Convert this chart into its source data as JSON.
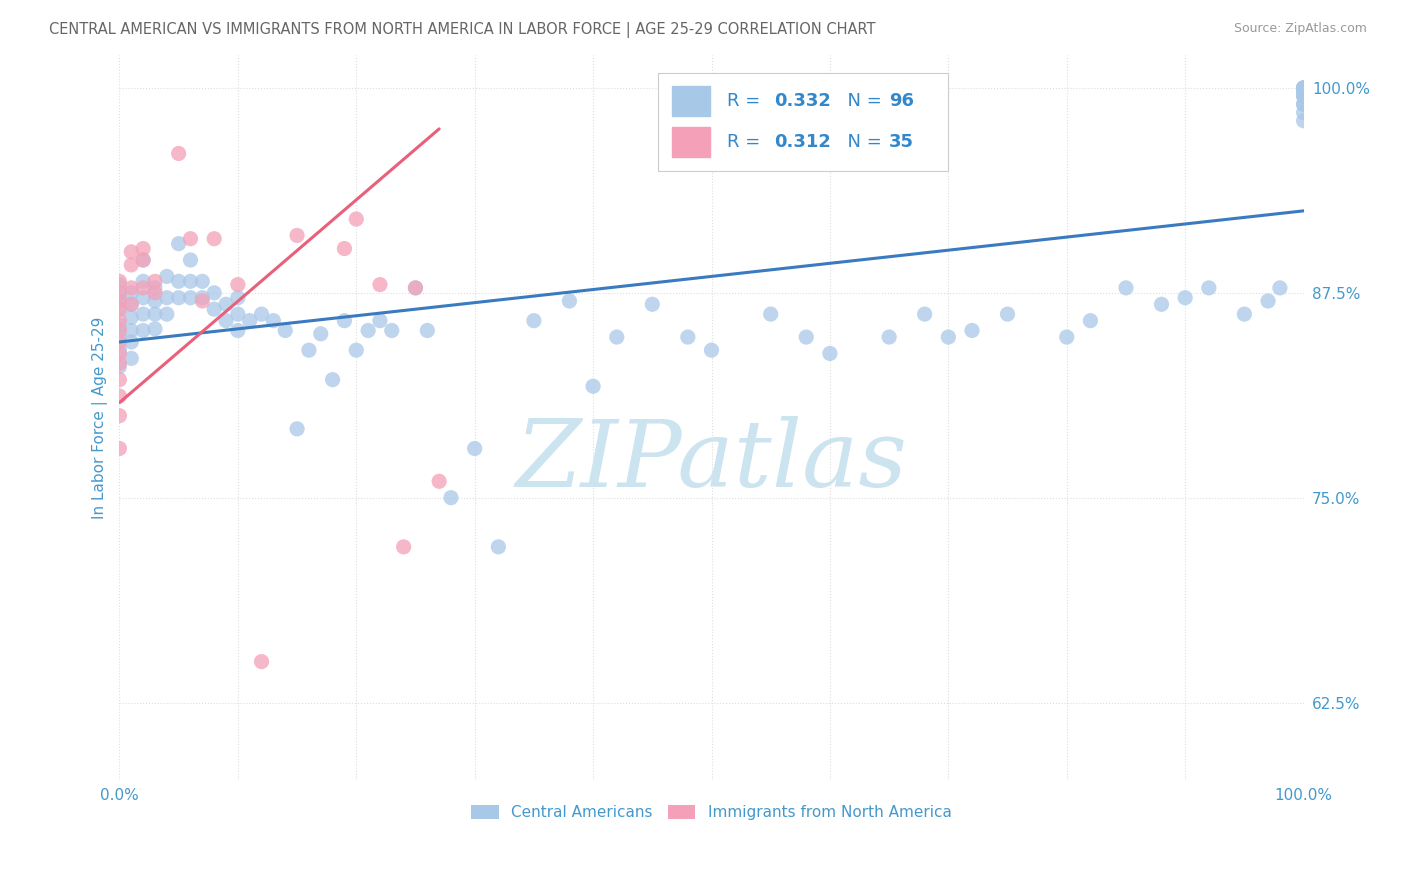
{
  "title": "CENTRAL AMERICAN VS IMMIGRANTS FROM NORTH AMERICA IN LABOR FORCE | AGE 25-29 CORRELATION CHART",
  "source": "Source: ZipAtlas.com",
  "ylabel": "In Labor Force | Age 25-29",
  "blue_R": 0.332,
  "blue_N": 96,
  "pink_R": 0.312,
  "pink_N": 35,
  "blue_color": "#a8c8e8",
  "pink_color": "#f4a0b8",
  "blue_line_color": "#3a7bbf",
  "pink_line_color": "#e8607a",
  "title_color": "#666666",
  "source_color": "#999999",
  "tick_label_color": "#4499cc",
  "legend_R_color": "#3388cc",
  "background_color": "#ffffff",
  "blue_scatter_x": [
    0.0,
    0.0,
    0.0,
    0.0,
    0.0,
    0.0,
    0.0,
    0.01,
    0.01,
    0.01,
    0.01,
    0.01,
    0.01,
    0.02,
    0.02,
    0.02,
    0.02,
    0.02,
    0.03,
    0.03,
    0.03,
    0.03,
    0.04,
    0.04,
    0.04,
    0.05,
    0.05,
    0.05,
    0.06,
    0.06,
    0.06,
    0.07,
    0.07,
    0.08,
    0.08,
    0.09,
    0.09,
    0.1,
    0.1,
    0.1,
    0.11,
    0.12,
    0.13,
    0.14,
    0.15,
    0.16,
    0.17,
    0.18,
    0.19,
    0.2,
    0.21,
    0.22,
    0.23,
    0.25,
    0.26,
    0.28,
    0.3,
    0.32,
    0.35,
    0.38,
    0.4,
    0.42,
    0.45,
    0.48,
    0.5,
    0.55,
    0.58,
    0.6,
    0.65,
    0.68,
    0.7,
    0.72,
    0.75,
    0.8,
    0.82,
    0.85,
    0.88,
    0.9,
    0.92,
    0.95,
    0.97,
    0.98,
    1.0,
    1.0,
    1.0,
    1.0,
    1.0,
    1.0,
    1.0,
    1.0,
    1.0,
    1.0,
    1.0,
    1.0
  ],
  "blue_scatter_y": [
    0.88,
    0.872,
    0.865,
    0.855,
    0.848,
    0.84,
    0.83,
    0.875,
    0.868,
    0.86,
    0.852,
    0.845,
    0.835,
    0.895,
    0.882,
    0.872,
    0.862,
    0.852,
    0.878,
    0.87,
    0.862,
    0.853,
    0.885,
    0.872,
    0.862,
    0.905,
    0.882,
    0.872,
    0.895,
    0.882,
    0.872,
    0.882,
    0.872,
    0.875,
    0.865,
    0.868,
    0.858,
    0.872,
    0.862,
    0.852,
    0.858,
    0.862,
    0.858,
    0.852,
    0.792,
    0.84,
    0.85,
    0.822,
    0.858,
    0.84,
    0.852,
    0.858,
    0.852,
    0.878,
    0.852,
    0.75,
    0.78,
    0.72,
    0.858,
    0.87,
    0.818,
    0.848,
    0.868,
    0.848,
    0.84,
    0.862,
    0.848,
    0.838,
    0.848,
    0.862,
    0.848,
    0.852,
    0.862,
    0.848,
    0.858,
    0.878,
    0.868,
    0.872,
    0.878,
    0.862,
    0.87,
    0.878,
    1.0,
    1.0,
    1.0,
    1.0,
    0.998,
    0.995,
    0.99,
    0.985,
    0.98,
    0.998,
    0.995,
    0.99
  ],
  "pink_scatter_x": [
    0.0,
    0.0,
    0.0,
    0.0,
    0.0,
    0.0,
    0.0,
    0.0,
    0.0,
    0.0,
    0.0,
    0.0,
    0.0,
    0.01,
    0.01,
    0.01,
    0.01,
    0.02,
    0.02,
    0.02,
    0.03,
    0.03,
    0.05,
    0.06,
    0.07,
    0.08,
    0.1,
    0.12,
    0.15,
    0.19,
    0.2,
    0.22,
    0.24,
    0.25,
    0.27
  ],
  "pink_scatter_y": [
    0.882,
    0.875,
    0.87,
    0.865,
    0.858,
    0.852,
    0.845,
    0.838,
    0.832,
    0.822,
    0.812,
    0.8,
    0.78,
    0.9,
    0.892,
    0.878,
    0.868,
    0.902,
    0.895,
    0.878,
    0.882,
    0.875,
    0.96,
    0.908,
    0.87,
    0.908,
    0.88,
    0.65,
    0.91,
    0.902,
    0.92,
    0.88,
    0.72,
    0.878,
    0.76
  ],
  "xlim": [
    0.0,
    1.0
  ],
  "ylim": [
    0.578,
    1.02
  ],
  "yticks": [
    0.625,
    0.75,
    0.875,
    1.0
  ],
  "ytick_labels": [
    "62.5%",
    "75.0%",
    "87.5%",
    "100.0%"
  ],
  "xticks": [
    0.0,
    0.1,
    0.2,
    0.3,
    0.4,
    0.5,
    0.6,
    0.7,
    0.8,
    0.9,
    1.0
  ],
  "xtick_labels": [
    "0.0%",
    "",
    "",
    "",
    "",
    "",
    "",
    "",
    "",
    "",
    "100.0%"
  ],
  "watermark_text": "ZIPatlas",
  "watermark_color": "#cce4f0",
  "legend_label_blue": "Central Americans",
  "legend_label_pink": "Immigrants from North America",
  "blue_trend_x0": 0.0,
  "blue_trend_x1": 1.0,
  "blue_trend_y0": 0.845,
  "blue_trend_y1": 0.925,
  "pink_trend_x0": 0.0,
  "pink_trend_x1": 0.27,
  "pink_trend_y0": 0.808,
  "pink_trend_y1": 0.975
}
